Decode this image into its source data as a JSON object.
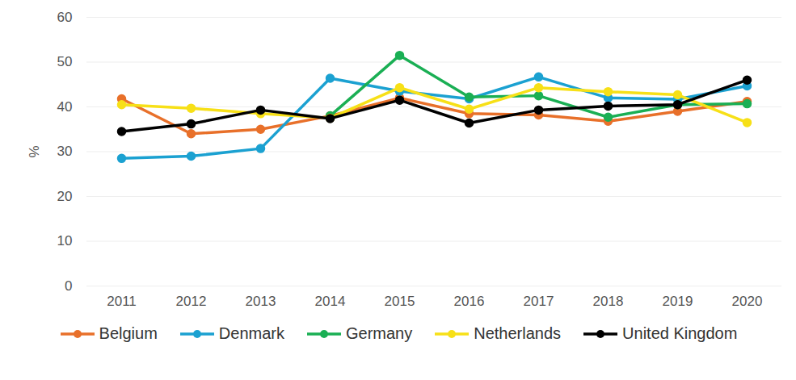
{
  "chart_data": {
    "type": "line",
    "y_label": "%",
    "categories": [
      "2011",
      "2012",
      "2013",
      "2014",
      "2015",
      "2016",
      "2017",
      "2018",
      "2019",
      "2020"
    ],
    "ylim": [
      0,
      60
    ],
    "yticks": [
      0,
      10,
      20,
      30,
      40,
      50,
      60
    ],
    "grid": true,
    "legend": "bottom",
    "marker": "circle",
    "line_style": "solid",
    "series": [
      {
        "name": "Belgium",
        "color": "#e8702a",
        "values": [
          41.8,
          34.0,
          35.0,
          38.0,
          42.0,
          38.5,
          38.2,
          36.8,
          39.0,
          41.2
        ]
      },
      {
        "name": "Denmark",
        "color": "#1ba1d1",
        "values": [
          28.5,
          29.0,
          30.7,
          46.4,
          43.5,
          41.8,
          46.7,
          42.0,
          41.7,
          44.7
        ]
      },
      {
        "name": "Germany",
        "color": "#1aaf54",
        "values": [
          null,
          null,
          null,
          38.0,
          51.5,
          42.2,
          42.5,
          37.7,
          40.5,
          40.7
        ]
      },
      {
        "name": "Netherlands",
        "color": "#f7e017",
        "values": [
          40.5,
          39.7,
          38.5,
          37.5,
          44.3,
          39.5,
          44.3,
          43.4,
          42.7,
          36.5
        ]
      },
      {
        "name": "United Kingdom",
        "color": "#000000",
        "values": [
          34.5,
          36.2,
          39.3,
          37.4,
          41.5,
          36.4,
          39.3,
          40.2,
          40.5,
          46.0
        ]
      }
    ]
  }
}
